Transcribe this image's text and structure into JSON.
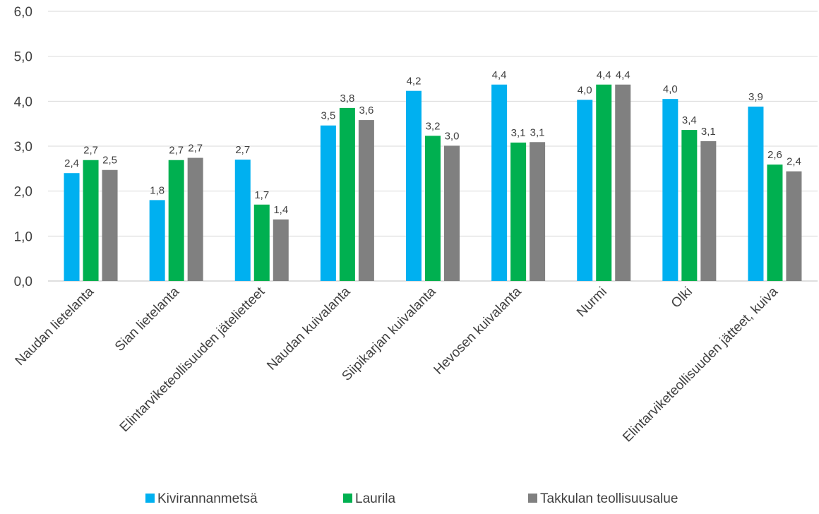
{
  "chart_data": {
    "type": "bar",
    "categories": [
      "Naudan lietelanta",
      "Sian lietelanta",
      "Elintarviketeollisuuden jätelietteet",
      "Naudan kuivalanta",
      "Siipikarjan kuivalanta",
      "Hevosen kuivalanta",
      "Nurmi",
      "Olki",
      "Elintarviketeollisuuden jätteet, kuiva"
    ],
    "series": [
      {
        "name": "Kivirannanmetsä",
        "color": "#00B0F0",
        "values": [
          2.4,
          1.8,
          2.7,
          3.46,
          4.23,
          4.37,
          4.03,
          4.05,
          3.88
        ],
        "labels": [
          "2,4",
          "1,8",
          "2,7",
          "3,5",
          "4,2",
          "4,4",
          "4,0",
          "4,0",
          "3,9"
        ]
      },
      {
        "name": "Laurila",
        "color": "#00B050",
        "values": [
          2.69,
          2.69,
          1.7,
          3.85,
          3.23,
          3.08,
          4.37,
          3.36,
          2.59
        ],
        "labels": [
          "2,7",
          "2,7",
          "1,7",
          "3,8",
          "3,2",
          "3,1",
          "4,4",
          "3,4",
          "2,6"
        ]
      },
      {
        "name": "Takkulan teollisuusalue",
        "color": "#808080",
        "values": [
          2.47,
          2.74,
          1.37,
          3.58,
          3.01,
          3.09,
          4.37,
          3.11,
          2.44
        ],
        "labels": [
          "2,5",
          "2,7",
          "1,4",
          "3,6",
          "3,0",
          "3,1",
          "4,4",
          "3,1",
          "2,4"
        ]
      }
    ],
    "y_ticks": [
      "0,0",
      "1,0",
      "2,0",
      "3,0",
      "4,0",
      "5,0",
      "6,0"
    ],
    "ylim": [
      0,
      6
    ],
    "grid": true,
    "legend_position": "bottom",
    "title": "",
    "xlabel": "",
    "ylabel": ""
  }
}
